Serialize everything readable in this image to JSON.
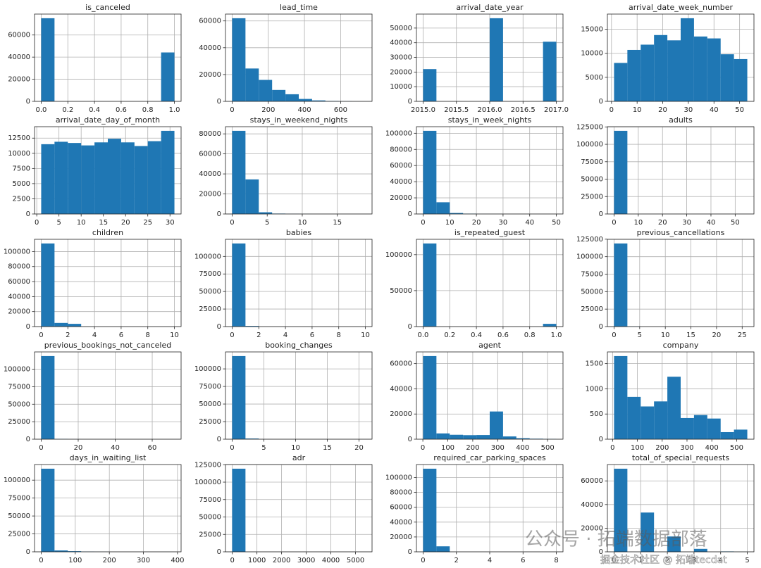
{
  "chart_data": [
    {
      "type": "histogram",
      "title": "is_canceled",
      "bins": [
        0,
        0.1,
        0.2,
        0.3,
        0.4,
        0.5,
        0.6,
        0.7,
        0.8,
        0.9,
        1.0
      ],
      "values": [
        75166,
        0,
        0,
        0,
        0,
        0,
        0,
        0,
        0,
        44224
      ],
      "color": "#1f77b4",
      "grid": true,
      "xlim": [
        -0.05,
        1.05
      ],
      "xticks": [
        {
          "value": 0,
          "label": "0.0"
        },
        {
          "value": 0.2,
          "label": "0.2"
        },
        {
          "value": 0.4,
          "label": "0.4"
        },
        {
          "value": 0.6,
          "label": "0.6"
        },
        {
          "value": 0.8,
          "label": "0.8"
        },
        {
          "value": 1,
          "label": "1.0"
        }
      ],
      "ylim": [
        0,
        78924.3
      ],
      "yticks": [
        0,
        20000,
        40000,
        60000
      ]
    },
    {
      "type": "histogram",
      "title": "lead_time",
      "bins": [
        0,
        73.7,
        147.4,
        221.1,
        294.8,
        368.5,
        442.2,
        515.9,
        589.6,
        663.3,
        737
      ],
      "values": [
        62000,
        24500,
        16000,
        8500,
        5300,
        1800,
        700,
        300,
        100,
        10
      ],
      "color": "#1f77b4",
      "grid": true,
      "xlim": [
        -36.85,
        773.85
      ],
      "xticks": [
        0,
        200,
        400,
        600
      ],
      "ylim": [
        0,
        65100
      ],
      "yticks": [
        0,
        20000,
        40000,
        60000
      ]
    },
    {
      "type": "histogram",
      "title": "arrival_date_year",
      "bins": [
        2015,
        2015.2,
        2015.4,
        2015.6,
        2015.8,
        2016,
        2016.2,
        2016.4,
        2016.6,
        2016.8,
        2017
      ],
      "values": [
        21996,
        0,
        0,
        0,
        0,
        56707,
        0,
        0,
        0,
        40687
      ],
      "color": "#1f77b4",
      "grid": true,
      "xlim": [
        2014.9,
        2017.1
      ],
      "xticks": [
        {
          "value": 2015,
          "label": "2015.0"
        },
        {
          "value": 2015.5,
          "label": "2015.5"
        },
        {
          "value": 2016,
          "label": "2016.0"
        },
        {
          "value": 2016.5,
          "label": "2016.5"
        },
        {
          "value": 2017,
          "label": "2017.0"
        }
      ],
      "ylim": [
        0,
        59542.35
      ],
      "yticks": [
        0,
        10000,
        20000,
        30000,
        40000,
        50000
      ]
    },
    {
      "type": "histogram",
      "title": "arrival_date_week_number",
      "bins": [
        1,
        6.2,
        11.4,
        16.6,
        21.8,
        27,
        32.2,
        37.4,
        42.6,
        47.8,
        53
      ],
      "values": [
        8000,
        10700,
        11800,
        13800,
        12700,
        17300,
        13500,
        13100,
        9800,
        8800
      ],
      "color": "#1f77b4",
      "grid": true,
      "xlim": [
        -1.6,
        55.6
      ],
      "xticks": [
        0,
        10,
        20,
        30,
        40,
        50
      ],
      "ylim": [
        0,
        18165
      ],
      "yticks": [
        0,
        5000,
        10000,
        15000
      ]
    },
    {
      "type": "histogram",
      "title": "arrival_date_day_of_month",
      "bins": [
        1,
        4,
        7,
        10,
        13,
        16,
        19,
        22,
        25,
        28,
        31
      ],
      "values": [
        11500,
        11900,
        11700,
        11300,
        11800,
        12400,
        11800,
        11200,
        12000,
        13700
      ],
      "color": "#1f77b4",
      "grid": true,
      "xlim": [
        -0.5,
        32.5
      ],
      "xticks": [
        0,
        5,
        10,
        15,
        20,
        25,
        30
      ],
      "ylim": [
        0,
        14385
      ],
      "yticks": [
        0,
        2500,
        5000,
        7500,
        10000,
        12500
      ]
    },
    {
      "type": "histogram",
      "title": "stays_in_weekend_nights",
      "bins": [
        0,
        1.9,
        3.8,
        5.7,
        7.6,
        9.5,
        11.4,
        13.3,
        15.2,
        17.1,
        19
      ],
      "values": [
        83000,
        34500,
        1700,
        400,
        100,
        60,
        0,
        0,
        10,
        5
      ],
      "color": "#1f77b4",
      "grid": true,
      "xlim": [
        -0.95,
        19.95
      ],
      "xticks": [
        0,
        5,
        10,
        15
      ],
      "ylim": [
        0,
        87150
      ],
      "yticks": [
        0,
        20000,
        40000,
        60000,
        80000
      ]
    },
    {
      "type": "histogram",
      "title": "stays_in_week_nights",
      "bins": [
        0,
        5,
        10,
        15,
        20,
        25,
        30,
        35,
        40,
        45,
        50
      ],
      "values": [
        103000,
        14500,
        1200,
        400,
        80,
        40,
        20,
        10,
        3,
        3
      ],
      "color": "#1f77b4",
      "grid": true,
      "xlim": [
        -2.5,
        52.5
      ],
      "xticks": [
        0,
        10,
        20,
        30,
        40,
        50
      ],
      "ylim": [
        0,
        108150
      ],
      "yticks": [
        0,
        20000,
        40000,
        60000,
        80000,
        100000
      ]
    },
    {
      "type": "histogram",
      "title": "adults",
      "bins": [
        0,
        5.5,
        11,
        16.5,
        22,
        27.5,
        33,
        38.5,
        44,
        49.5,
        55
      ],
      "values": [
        119350,
        16,
        0,
        0,
        0,
        0,
        0,
        0,
        0,
        24
      ],
      "color": "#1f77b4",
      "grid": true,
      "xlim": [
        -2.75,
        57.75
      ],
      "xticks": [
        0,
        10,
        20,
        30,
        40,
        50
      ],
      "ylim": [
        0,
        125317.5
      ],
      "yticks": [
        0,
        25000,
        50000,
        75000,
        100000,
        125000
      ]
    },
    {
      "type": "histogram",
      "title": "children",
      "bins": [
        0,
        1,
        2,
        3,
        4,
        5,
        6,
        7,
        8,
        9,
        10
      ],
      "values": [
        110800,
        4860,
        3650,
        76,
        0,
        0,
        0,
        0,
        0,
        2
      ],
      "color": "#1f77b4",
      "grid": true,
      "xlim": [
        -0.5,
        10.5
      ],
      "xticks": [
        0,
        2,
        4,
        6,
        8,
        10
      ],
      "ylim": [
        0,
        116340
      ],
      "yticks": [
        0,
        20000,
        40000,
        60000,
        80000,
        100000
      ]
    },
    {
      "type": "histogram",
      "title": "babies",
      "bins": [
        0,
        1,
        2,
        3,
        4,
        5,
        6,
        7,
        8,
        9,
        10
      ],
      "values": [
        118470,
        900,
        15,
        0,
        0,
        0,
        0,
        0,
        1,
        1
      ],
      "color": "#1f77b4",
      "grid": true,
      "xlim": [
        -0.5,
        10.5
      ],
      "xticks": [
        0,
        2,
        4,
        6,
        8,
        10
      ],
      "ylim": [
        0,
        124393.5
      ],
      "yticks": [
        0,
        25000,
        50000,
        75000,
        100000
      ]
    },
    {
      "type": "histogram",
      "title": "is_repeated_guest",
      "bins": [
        0,
        0.1,
        0.2,
        0.3,
        0.4,
        0.5,
        0.6,
        0.7,
        0.8,
        0.9,
        1.0
      ],
      "values": [
        115580,
        0,
        0,
        0,
        0,
        0,
        0,
        0,
        0,
        3810
      ],
      "color": "#1f77b4",
      "grid": true,
      "xlim": [
        -0.05,
        1.05
      ],
      "xticks": [
        {
          "value": 0,
          "label": "0.0"
        },
        {
          "value": 0.2,
          "label": "0.2"
        },
        {
          "value": 0.4,
          "label": "0.4"
        },
        {
          "value": 0.6,
          "label": "0.6"
        },
        {
          "value": 0.8,
          "label": "0.8"
        },
        {
          "value": 1,
          "label": "1.0"
        }
      ],
      "ylim": [
        0,
        121359
      ],
      "yticks": [
        0,
        50000,
        100000
      ]
    },
    {
      "type": "histogram",
      "title": "previous_cancellations",
      "bins": [
        0,
        2.6,
        5.2,
        7.8,
        10.4,
        13,
        15.6,
        18.2,
        20.8,
        23.4,
        26
      ],
      "values": [
        118900,
        300,
        10,
        20,
        0,
        0,
        0,
        0,
        0,
        25
      ],
      "color": "#1f77b4",
      "grid": true,
      "xlim": [
        -1.3,
        27.3
      ],
      "xticks": [
        0,
        5,
        10,
        15,
        20,
        25
      ],
      "ylim": [
        0,
        124845
      ],
      "yticks": [
        0,
        25000,
        50000,
        75000,
        100000,
        125000
      ]
    },
    {
      "type": "histogram",
      "title": "previous_bookings_not_canceled",
      "bins": [
        0,
        7.2,
        14.4,
        21.6,
        28.8,
        36,
        43.2,
        50.4,
        57.6,
        64.8,
        72
      ],
      "values": [
        118800,
        400,
        100,
        30,
        20,
        10,
        5,
        3,
        2,
        3
      ],
      "color": "#1f77b4",
      "grid": true,
      "xlim": [
        -3.6,
        75.6
      ],
      "xticks": [
        0,
        20,
        40,
        60
      ],
      "ylim": [
        0,
        124740
      ],
      "yticks": [
        0,
        25000,
        50000,
        75000,
        100000
      ]
    },
    {
      "type": "histogram",
      "title": "booking_changes",
      "bins": [
        0,
        2.1,
        4.2,
        6.3,
        8.4,
        10.5,
        12.6,
        14.7,
        16.8,
        18.9,
        21
      ],
      "values": [
        118200,
        1000,
        100,
        40,
        10,
        5,
        2,
        1,
        1,
        1
      ],
      "color": "#1f77b4",
      "grid": true,
      "xlim": [
        -1.05,
        22.05
      ],
      "xticks": [
        0,
        5,
        10,
        15,
        20
      ],
      "ylim": [
        0,
        124110
      ],
      "yticks": [
        0,
        25000,
        50000,
        75000,
        100000
      ]
    },
    {
      "type": "histogram",
      "title": "agent",
      "bins": [
        1,
        54.4,
        107.8,
        161.2,
        214.6,
        268,
        321.4,
        374.8,
        428.2,
        481.6,
        535
      ],
      "values": [
        66000,
        4600,
        3500,
        3200,
        3300,
        22000,
        2200,
        800,
        400,
        200
      ],
      "color": "#1f77b4",
      "grid": true,
      "xlim": [
        -25.7,
        561.7
      ],
      "xticks": [
        0,
        100,
        200,
        300,
        400,
        500
      ],
      "ylim": [
        0,
        69300
      ],
      "yticks": [
        0,
        20000,
        40000,
        60000
      ]
    },
    {
      "type": "histogram",
      "title": "company",
      "bins": [
        6,
        59.7,
        113.4,
        167.1,
        220.8,
        274.5,
        328.2,
        381.9,
        435.6,
        489.3,
        543
      ],
      "values": [
        1650,
        840,
        650,
        750,
        1240,
        420,
        480,
        410,
        140,
        190
      ],
      "color": "#1f77b4",
      "grid": true,
      "xlim": [
        -20.85,
        569.85
      ],
      "xticks": [
        0,
        100,
        200,
        300,
        400,
        500
      ],
      "ylim": [
        0,
        1732.5
      ],
      "yticks": [
        0,
        500,
        1000,
        1500
      ]
    },
    {
      "type": "histogram",
      "title": "days_in_waiting_list",
      "bins": [
        0,
        39.1,
        78.2,
        117.3,
        156.4,
        195.5,
        234.6,
        273.7,
        312.8,
        351.9,
        391
      ],
      "values": [
        116000,
        1900,
        900,
        300,
        100,
        20,
        10,
        5,
        0,
        40
      ],
      "color": "#1f77b4",
      "grid": true,
      "xlim": [
        -19.55,
        410.55
      ],
      "xticks": [
        0,
        100,
        200,
        300,
        400
      ],
      "ylim": [
        0,
        121800
      ],
      "yticks": [
        0,
        25000,
        50000,
        75000,
        100000
      ]
    },
    {
      "type": "histogram",
      "title": "adr",
      "bins": [
        -6.38,
        534.26,
        1074.9,
        1615.54,
        2156.18,
        2696.82,
        3237.46,
        3778.1,
        4318.74,
        4859.38,
        5400
      ],
      "values": [
        119300,
        0,
        0,
        0,
        0,
        0,
        0,
        0,
        0,
        1
      ],
      "color": "#1f77b4",
      "grid": true,
      "xlim": [
        -276.7,
        5670.3
      ],
      "xticks": [
        0,
        1000,
        2000,
        3000,
        4000,
        5000
      ],
      "ylim": [
        0,
        125265
      ],
      "yticks": [
        0,
        25000,
        50000,
        75000,
        100000,
        125000
      ]
    },
    {
      "type": "histogram",
      "title": "required_car_parking_spaces",
      "bins": [
        0,
        0.8,
        1.6,
        2.4,
        3.2,
        4,
        4.8,
        5.6,
        6.4,
        7.2,
        8
      ],
      "values": [
        111974,
        7383,
        28,
        3,
        0,
        0,
        0,
        0,
        0,
        2
      ],
      "color": "#1f77b4",
      "grid": true,
      "xlim": [
        -0.4,
        8.4
      ],
      "xticks": [
        0,
        2,
        4,
        6,
        8
      ],
      "ylim": [
        0,
        117572.7
      ],
      "yticks": [
        0,
        20000,
        40000,
        60000,
        80000,
        100000
      ]
    },
    {
      "type": "histogram",
      "title": "total_of_special_requests",
      "bins": [
        0,
        0.5,
        1,
        1.5,
        2,
        2.5,
        3,
        3.5,
        4,
        4.5,
        5
      ],
      "values": [
        70318,
        0,
        33226,
        0,
        12969,
        0,
        2497,
        0,
        340,
        40
      ],
      "color": "#1f77b4",
      "grid": true,
      "xlim": [
        -0.25,
        5.25
      ],
      "xticks": [
        0,
        1,
        2,
        3,
        4,
        5
      ],
      "ylim": [
        0,
        73833.9
      ],
      "yticks": [
        0,
        20000,
        40000,
        60000
      ]
    }
  ],
  "watermark": [
    "公众号 · 拓端数据部落",
    "掘金技术社区 @ 拓端tecdat"
  ]
}
